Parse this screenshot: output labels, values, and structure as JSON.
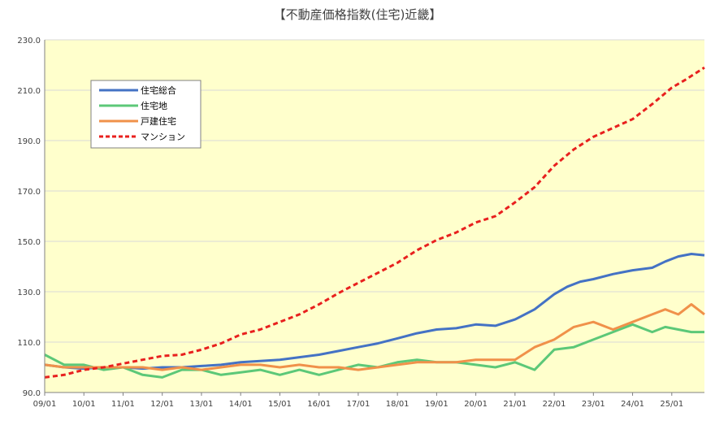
{
  "chart_data": {
    "type": "line",
    "title": "【不動産価格指数(住宅)近畿】",
    "xlabel": "",
    "ylabel": "",
    "ylim": [
      90,
      230
    ],
    "yticks": [
      "90.0",
      "110.0",
      "130.0",
      "150.0",
      "170.0",
      "190.0",
      "210.0",
      "230.0"
    ],
    "ytick_values": [
      90,
      110,
      130,
      150,
      170,
      190,
      210,
      230
    ],
    "xlim": [
      0,
      202
    ],
    "xticks": [
      "09/01",
      "10/01",
      "11/01",
      "12/01",
      "13/01",
      "14/01",
      "15/01",
      "16/01",
      "17/01",
      "18/01",
      "19/01",
      "20/01",
      "21/01",
      "22/01",
      "23/01",
      "24/01",
      "25/01"
    ],
    "xtick_values": [
      0,
      12,
      24,
      36,
      48,
      60,
      72,
      84,
      96,
      108,
      120,
      132,
      144,
      156,
      168,
      180,
      192
    ],
    "grid": "horizontal",
    "legend_position": "top-left",
    "series": [
      {
        "name": "住宅総合",
        "color": "#4472c4",
        "style": "solid",
        "x": [
          0,
          6,
          12,
          18,
          24,
          30,
          36,
          42,
          48,
          54,
          60,
          66,
          72,
          78,
          84,
          90,
          96,
          102,
          108,
          114,
          120,
          126,
          132,
          138,
          144,
          150,
          156,
          160,
          164,
          168,
          174,
          180,
          186,
          190,
          194,
          198,
          202
        ],
        "values": [
          101,
          100,
          99.5,
          100,
          100,
          99.5,
          100,
          100,
          100.5,
          101,
          102,
          102.5,
          103,
          104,
          105,
          106.5,
          108,
          109.5,
          111.5,
          113.5,
          115,
          115.5,
          117,
          116.5,
          119,
          123,
          129,
          132,
          134,
          135,
          137,
          138.5,
          139.5,
          142,
          144,
          145,
          144.5
        ]
      },
      {
        "name": "住宅地",
        "color": "#5cc878",
        "style": "solid",
        "x": [
          0,
          6,
          12,
          18,
          24,
          30,
          36,
          42,
          48,
          54,
          60,
          66,
          72,
          78,
          84,
          90,
          96,
          102,
          108,
          114,
          120,
          126,
          132,
          138,
          144,
          150,
          156,
          162,
          168,
          174,
          180,
          186,
          190,
          194,
          198,
          202
        ],
        "values": [
          105,
          101,
          101,
          99,
          100,
          97,
          96,
          99,
          99,
          97,
          98,
          99,
          97,
          99,
          97,
          99,
          101,
          100,
          102,
          103,
          102,
          102,
          101,
          100,
          102,
          99,
          107,
          108,
          111,
          114,
          117,
          114,
          116,
          115,
          114,
          114
        ]
      },
      {
        "name": "戸建住宅",
        "color": "#f0914a",
        "style": "solid",
        "x": [
          0,
          6,
          12,
          18,
          24,
          30,
          36,
          42,
          48,
          54,
          60,
          66,
          72,
          78,
          84,
          90,
          96,
          102,
          108,
          114,
          120,
          126,
          132,
          138,
          144,
          150,
          156,
          162,
          168,
          174,
          180,
          186,
          190,
          194,
          198,
          202
        ],
        "values": [
          101,
          100,
          100,
          100,
          100,
          100,
          99,
          100,
          99,
          100,
          101,
          101,
          100,
          101,
          100,
          100,
          99,
          100,
          101,
          102,
          102,
          102,
          103,
          103,
          103,
          108,
          111,
          116,
          118,
          115,
          118,
          121,
          123,
          121,
          125,
          121
        ]
      },
      {
        "name": "マンション",
        "color": "#e8201e",
        "style": "dashed",
        "x": [
          0,
          6,
          12,
          18,
          24,
          30,
          36,
          42,
          48,
          54,
          60,
          66,
          72,
          78,
          84,
          90,
          96,
          102,
          108,
          114,
          120,
          126,
          132,
          138,
          144,
          150,
          156,
          162,
          168,
          174,
          180,
          186,
          192,
          196,
          202
        ],
        "values": [
          96,
          97,
          99,
          100,
          101.5,
          103,
          104.5,
          105,
          107,
          109.5,
          113,
          115,
          118,
          121,
          125,
          129.5,
          133.5,
          137.5,
          141.5,
          146.5,
          150.5,
          153.5,
          157.5,
          160,
          165.5,
          171.5,
          180,
          186.5,
          191.5,
          195,
          198.5,
          204.5,
          211,
          214,
          219
        ]
      }
    ]
  }
}
